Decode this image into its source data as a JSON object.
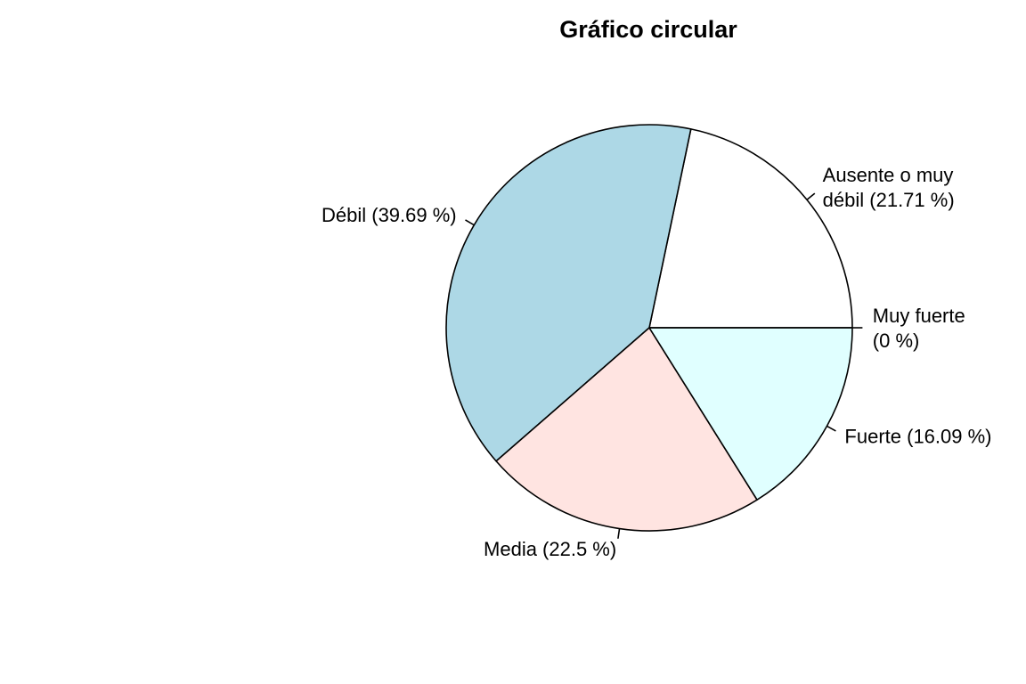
{
  "chart_data": {
    "type": "pie",
    "title": "Gráfico circular",
    "start_angle_deg": 0,
    "direction": "counterclockwise",
    "slices": [
      {
        "label": [
          "Ausente o muy",
          "débil (21.71 %)"
        ],
        "value": 21.71,
        "color": "#FFFFFF"
      },
      {
        "label": [
          "Débil (39.69 %)"
        ],
        "value": 39.69,
        "color": "#ADD8E6"
      },
      {
        "label": [
          "Media (22.5 %)"
        ],
        "value": 22.5,
        "color": "#FFE4E1"
      },
      {
        "label": [
          "Fuerte (16.09 %)"
        ],
        "value": 16.09,
        "color": "#E0FFFF"
      },
      {
        "label": [
          "Muy fuerte",
          "(0 %)"
        ],
        "value": 0,
        "color": "#F0F8FF"
      }
    ]
  }
}
